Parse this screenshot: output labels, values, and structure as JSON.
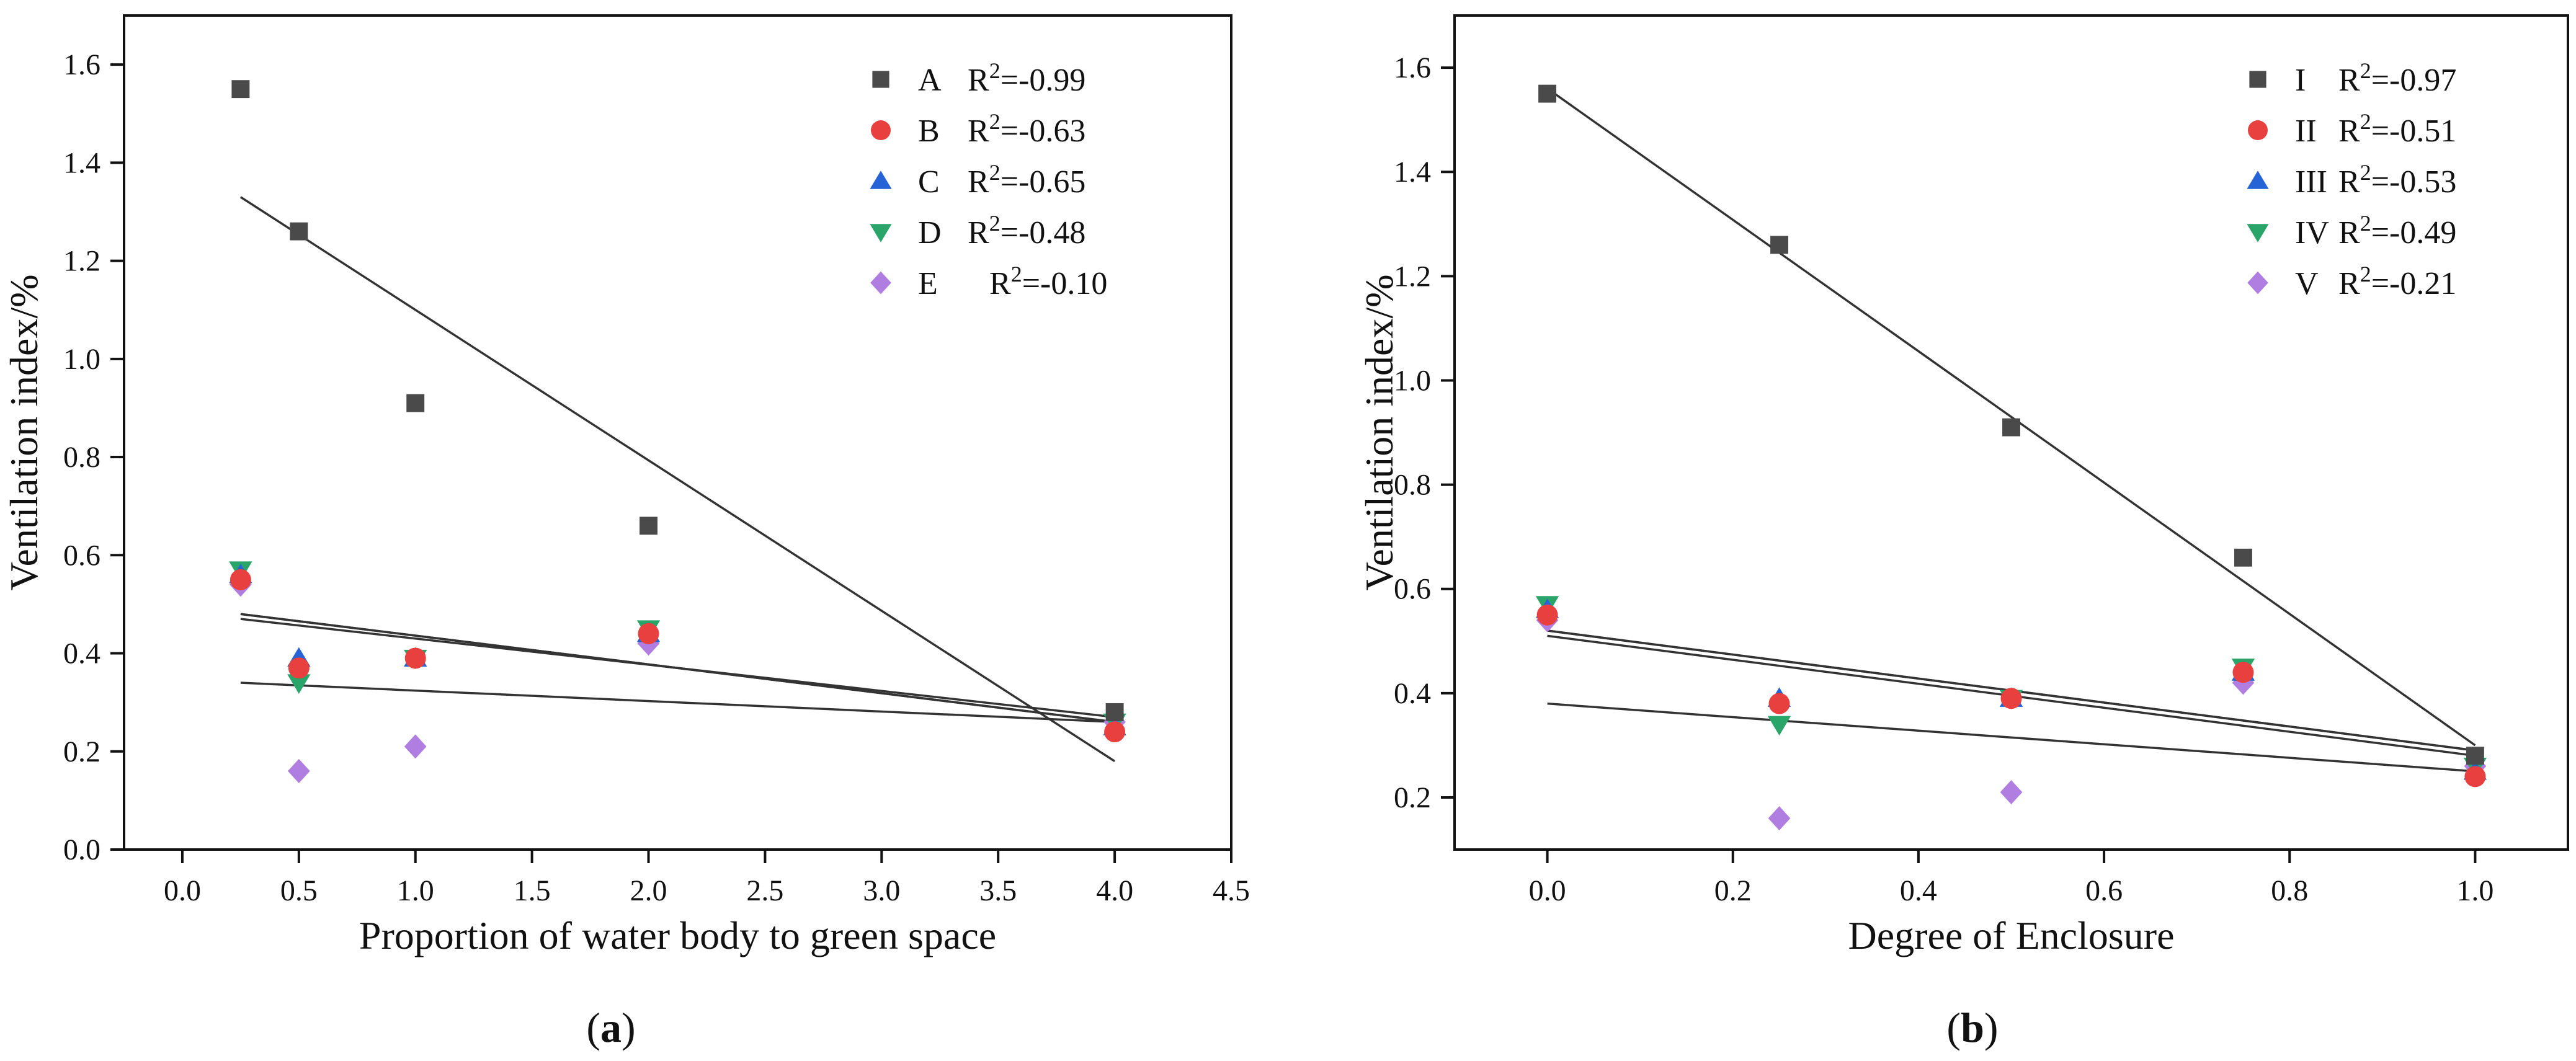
{
  "chart_data": [
    {
      "type": "scatter",
      "panel_label": "a",
      "xlabel": "Proportion of water body to green space",
      "ylabel": "Ventilation index/%",
      "xlim": [
        -0.25,
        4.5
      ],
      "ylim": [
        0,
        1.7
      ],
      "xticks": [
        0.0,
        0.5,
        1.0,
        1.5,
        2.0,
        2.5,
        3.0,
        3.5,
        4.0,
        4.5
      ],
      "xtick_labels": [
        "0.0",
        "0.5",
        "1.0",
        "1.5",
        "2.0",
        "2.5",
        "3.0",
        "3.5",
        "4.0",
        "4.5"
      ],
      "yticks": [
        0.0,
        0.2,
        0.4,
        0.6,
        0.8,
        1.0,
        1.2,
        1.4,
        1.6
      ],
      "ytick_labels": [
        "0.0",
        "0.2",
        "0.4",
        "0.6",
        "0.8",
        "1.0",
        "1.2",
        "1.4",
        "1.6"
      ],
      "legend_position": "top-right",
      "series": [
        {
          "name": "A",
          "r2": "-0.99",
          "marker": "square",
          "color": "#4a4a4a",
          "x": [
            0.25,
            0.5,
            1.0,
            2.0,
            4.0
          ],
          "values": [
            1.55,
            1.26,
            0.91,
            0.66,
            0.28
          ],
          "fit": {
            "x": [
              0.25,
              4.0
            ],
            "y": [
              1.33,
              0.18
            ]
          }
        },
        {
          "name": "B",
          "r2": "-0.63",
          "marker": "circle",
          "color": "#e8403f",
          "x": [
            0.25,
            0.5,
            1.0,
            2.0,
            4.0
          ],
          "values": [
            0.55,
            0.37,
            0.39,
            0.44,
            0.24
          ],
          "fit": {
            "x": [
              0.25,
              4.0
            ],
            "y": [
              0.48,
              0.26
            ]
          }
        },
        {
          "name": "C",
          "r2": "-0.65",
          "marker": "triangle-up",
          "color": "#2563d6",
          "x": [
            0.25,
            0.5,
            1.0,
            2.0,
            4.0
          ],
          "values": [
            0.56,
            0.39,
            0.39,
            0.44,
            0.25
          ],
          "fit": {
            "x": [
              0.25,
              4.0
            ],
            "y": [
              0.48,
              0.26
            ]
          }
        },
        {
          "name": "D",
          "r2": "-0.48",
          "marker": "triangle-down",
          "color": "#2aa56a",
          "x": [
            0.25,
            0.5,
            1.0,
            2.0,
            4.0
          ],
          "values": [
            0.57,
            0.34,
            0.39,
            0.45,
            0.26
          ],
          "fit": {
            "x": [
              0.25,
              4.0
            ],
            "y": [
              0.47,
              0.27
            ]
          }
        },
        {
          "name": "E",
          "r2": "-0.10",
          "marker": "diamond",
          "color": "#b07ee0",
          "x": [
            0.25,
            0.5,
            1.0,
            2.0,
            4.0
          ],
          "values": [
            0.54,
            0.16,
            0.21,
            0.42,
            0.26
          ],
          "fit": {
            "x": [
              0.25,
              4.0
            ],
            "y": [
              0.34,
              0.26
            ]
          }
        }
      ]
    },
    {
      "type": "scatter",
      "panel_label": "b",
      "xlabel": "Degree of Enclosure",
      "ylabel": "Ventilation index/%",
      "xlim": [
        -0.1,
        1.1
      ],
      "ylim": [
        0.1,
        1.7
      ],
      "xticks": [
        0.0,
        0.2,
        0.4,
        0.6,
        0.8,
        1.0
      ],
      "xtick_labels": [
        "0.0",
        "0.2",
        "0.4",
        "0.6",
        "0.8",
        "1.0"
      ],
      "yticks": [
        0.2,
        0.4,
        0.6,
        0.8,
        1.0,
        1.2,
        1.4,
        1.6
      ],
      "ytick_labels": [
        "0.2",
        "0.4",
        "0.6",
        "0.8",
        "1.0",
        "1.2",
        "1.4",
        "1.6"
      ],
      "legend_position": "top-right",
      "series": [
        {
          "name": "I",
          "r2": "-0.97",
          "marker": "square",
          "color": "#4a4a4a",
          "x": [
            0.0,
            0.25,
            0.5,
            0.75,
            1.0
          ],
          "values": [
            1.55,
            1.26,
            0.91,
            0.66,
            0.28
          ],
          "fit": {
            "x": [
              0.0,
              1.0
            ],
            "y": [
              1.56,
              0.3
            ]
          }
        },
        {
          "name": "II",
          "r2": "-0.51",
          "marker": "circle",
          "color": "#e8403f",
          "x": [
            0.0,
            0.25,
            0.5,
            0.75,
            1.0
          ],
          "values": [
            0.55,
            0.38,
            0.39,
            0.44,
            0.24
          ],
          "fit": {
            "x": [
              0.0,
              1.0
            ],
            "y": [
              0.52,
              0.29
            ]
          }
        },
        {
          "name": "III",
          "r2": "-0.53",
          "marker": "triangle-up",
          "color": "#2563d6",
          "x": [
            0.0,
            0.25,
            0.5,
            0.75,
            1.0
          ],
          "values": [
            0.56,
            0.39,
            0.39,
            0.44,
            0.25
          ],
          "fit": {
            "x": [
              0.0,
              1.0
            ],
            "y": [
              0.52,
              0.29
            ]
          }
        },
        {
          "name": "IV",
          "r2": "-0.49",
          "marker": "triangle-down",
          "color": "#2aa56a",
          "x": [
            0.0,
            0.25,
            0.5,
            0.75,
            1.0
          ],
          "values": [
            0.57,
            0.34,
            0.39,
            0.45,
            0.26
          ],
          "fit": {
            "x": [
              0.0,
              1.0
            ],
            "y": [
              0.51,
              0.28
            ]
          }
        },
        {
          "name": "V",
          "r2": "-0.21",
          "marker": "diamond",
          "color": "#b07ee0",
          "x": [
            0.0,
            0.25,
            0.5,
            0.75,
            1.0
          ],
          "values": [
            0.54,
            0.16,
            0.21,
            0.42,
            0.26
          ],
          "fit": {
            "x": [
              0.0,
              1.0
            ],
            "y": [
              0.38,
              0.25
            ]
          }
        }
      ]
    }
  ]
}
